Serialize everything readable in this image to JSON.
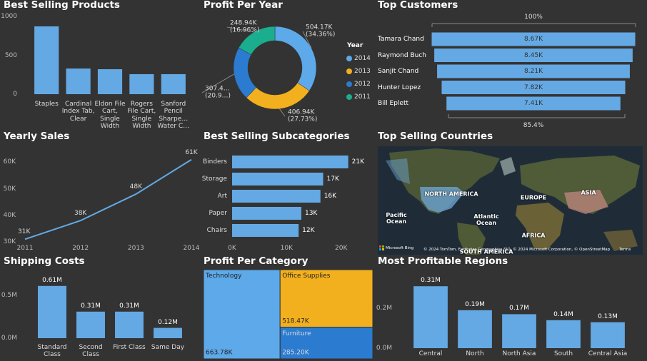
{
  "chart_data": [
    {
      "type": "bar",
      "title": "Best Selling Products",
      "categories": [
        "Staples",
        "Cardinal Index Tab, Clear",
        "Eldon File Cart, Single Width",
        "Rogers File Cart, Single Width",
        "Sanford Pencil Sharpe… Water C…"
      ],
      "values": [
        872,
        330,
        321,
        257,
        257
      ],
      "color": "#64A9E3",
      "ylim": [
        0,
        1000
      ],
      "yticks": [
        0,
        500,
        1000
      ]
    },
    {
      "type": "pie",
      "title": "Profit Per Year",
      "legend_title": "Year",
      "categories": [
        "2014",
        "2013",
        "2012",
        "2011"
      ],
      "values": [
        504170,
        406940,
        307400,
        248940
      ],
      "value_labels": [
        "504.17K (34.36%)",
        "406.94K (27.73%)",
        "307.4… (20.9…)",
        "248.94K (16.96%)"
      ],
      "colors": [
        "#5DA9E9",
        "#F2B01E",
        "#2B7BD0",
        "#1AAE8F"
      ]
    },
    {
      "type": "funnel",
      "title": "Top Customers",
      "categories": [
        "Tamara Chand",
        "Raymond Buch",
        "Sanjit Chand",
        "Hunter Lopez",
        "Bill Eplett"
      ],
      "values": [
        8670,
        8450,
        8210,
        7820,
        7410
      ],
      "value_labels": [
        "8.67K",
        "8.45K",
        "8.21K",
        "7.82K",
        "7.41K"
      ],
      "color": "#64A9E3",
      "top_label": "100%",
      "bottom_label": "85.4%"
    },
    {
      "type": "line",
      "title": "Yearly Sales",
      "x": [
        2011,
        2012,
        2013,
        2014
      ],
      "values": [
        31000,
        38000,
        48000,
        61000
      ],
      "value_labels": [
        "31K",
        "38K",
        "48K",
        "61K"
      ],
      "color": "#64A9E3",
      "xlim": [
        2011,
        2014
      ],
      "xticks": [
        2011,
        2012,
        2013,
        2014
      ],
      "ylim": [
        30000,
        62000
      ],
      "yticks": [
        {
          "value": 30000,
          "label": "30K"
        },
        {
          "value": 40000,
          "label": "40K"
        },
        {
          "value": 50000,
          "label": "50K"
        },
        {
          "value": 60000,
          "label": "60K"
        }
      ]
    },
    {
      "type": "bar",
      "orientation": "horizontal",
      "title": "Best Selling Subcategories",
      "categories": [
        "Binders",
        "Storage",
        "Art",
        "Paper",
        "Chairs"
      ],
      "values": [
        21300,
        16700,
        16200,
        12700,
        12200
      ],
      "value_labels": [
        "21K",
        "17K",
        "16K",
        "13K",
        "12K"
      ],
      "color": "#64A9E3",
      "xlim": [
        0,
        22000
      ],
      "xticks": [
        {
          "value": 0,
          "label": "0K"
        },
        {
          "value": 10000,
          "label": "10K"
        },
        {
          "value": 20000,
          "label": "20K"
        }
      ]
    },
    {
      "type": "map",
      "title": "Top Selling Countries",
      "map_labels": [
        "NORTH AMERICA",
        "EUROPE",
        "ASIA",
        "Pacific Ocean",
        "Atlantic Ocean",
        "AFRICA",
        "SOUTH AMERICA"
      ],
      "logo_text": "Microsoft Bing",
      "attribution": "© 2024 TomTom, Earthstar Geographics SIO, © 2024 Microsoft Corporation, © OpenStreetMap",
      "terms": "Terms"
    },
    {
      "type": "bar",
      "title": "Shipping Costs",
      "categories": [
        "Standard Class",
        "Second Class",
        "First Class",
        "Same Day"
      ],
      "values": [
        610000,
        310000,
        310000,
        120000
      ],
      "value_labels": [
        "0.61M",
        "0.31M",
        "0.31M",
        "0.12M"
      ],
      "color": "#64A9E3",
      "ylim": [
        0,
        660000
      ],
      "yticks": [
        {
          "value": 0,
          "label": "0.0M"
        },
        {
          "value": 500000,
          "label": "0.5M"
        }
      ]
    },
    {
      "type": "treemap",
      "title": "Profit Per Category",
      "categories": [
        "Technology",
        "Office Supplies",
        "Furniture"
      ],
      "values": [
        663780,
        518470,
        285200
      ],
      "value_labels": [
        "663.78K",
        "518.47K",
        "285.20K"
      ],
      "colors": [
        "#5DA9E9",
        "#F2B01E",
        "#2B7BD0"
      ]
    },
    {
      "type": "bar",
      "title": "Most Profitable Regions",
      "categories": [
        "Central",
        "North",
        "North Asia",
        "South",
        "Central Asia"
      ],
      "values": [
        310000,
        190000,
        170000,
        140000,
        130000
      ],
      "value_labels": [
        "0.31M",
        "0.19M",
        "0.17M",
        "0.14M",
        "0.13M"
      ],
      "color": "#64A9E3",
      "ylim": [
        0,
        330000
      ],
      "yticks": [
        {
          "value": 0,
          "label": "0.0M"
        },
        {
          "value": 200000,
          "label": "0.2M"
        }
      ]
    }
  ]
}
